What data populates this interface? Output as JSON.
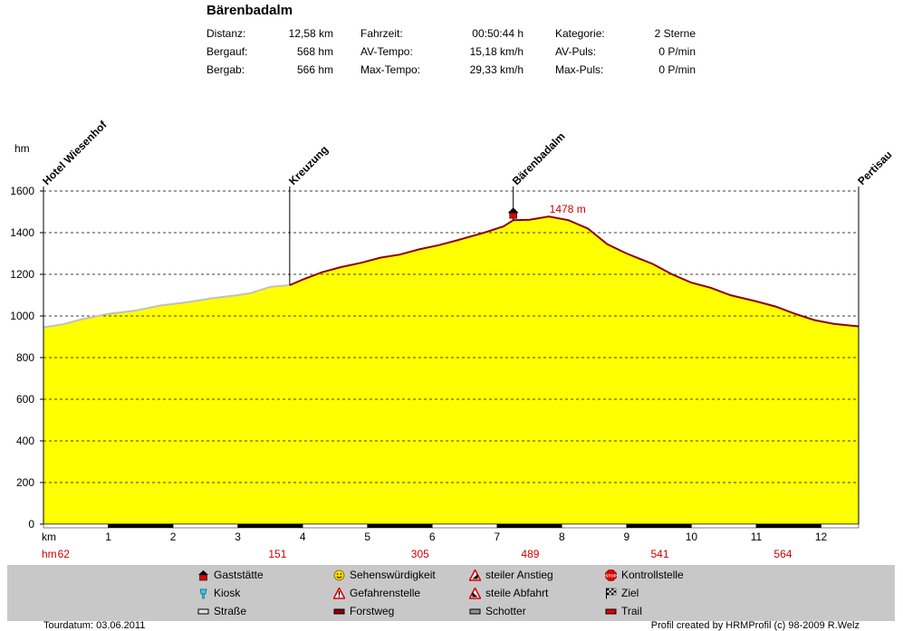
{
  "title": "Bärenbadalm",
  "stats": [
    [
      {
        "label": "Distanz:",
        "value": "12,58 km"
      },
      {
        "label": "Fahrzeit:",
        "value": "00:50:44 h"
      },
      {
        "label": "Kategorie:",
        "value": "2 Sterne"
      }
    ],
    [
      {
        "label": "Bergauf:",
        "value": "568 hm"
      },
      {
        "label": "AV-Tempo:",
        "value": "15,18 km/h"
      },
      {
        "label": "AV-Puls:",
        "value": "0 P/min"
      }
    ],
    [
      {
        "label": "Bergab:",
        "value": "566 hm"
      },
      {
        "label": "Max-Tempo:",
        "value": "29,33 km/h"
      },
      {
        "label": "Max-Puls:",
        "value": "0 P/min"
      }
    ]
  ],
  "colors": {
    "fill": "#ffff00",
    "line_road": "#c0c0c0",
    "line_forest": "#8b0000",
    "hm_text": "#cc0000",
    "legend_bg": "#c8c8c8"
  },
  "chart_data": {
    "type": "area",
    "ylabel": "hm",
    "xlabel": "km",
    "ylim": [
      0,
      1600
    ],
    "xlim": [
      0,
      12.58
    ],
    "yticks": [
      0,
      200,
      400,
      600,
      800,
      1000,
      1200,
      1400,
      1600
    ],
    "xticks": [
      1,
      2,
      3,
      4,
      5,
      6,
      7,
      8,
      9,
      10,
      11,
      12
    ],
    "grid": true,
    "x": [
      0,
      0.3,
      0.6,
      1.0,
      1.4,
      1.8,
      2.2,
      2.6,
      3.0,
      3.2,
      3.5,
      3.8,
      4.0,
      4.3,
      4.6,
      4.9,
      5.2,
      5.5,
      5.8,
      6.1,
      6.4,
      6.8,
      7.1,
      7.25,
      7.5,
      7.8,
      8.1,
      8.4,
      8.7,
      8.9,
      9.0,
      9.2,
      9.4,
      9.7,
      10.0,
      10.3,
      10.6,
      11.0,
      11.3,
      11.6,
      11.9,
      12.2,
      12.58
    ],
    "y": [
      945,
      960,
      985,
      1010,
      1025,
      1050,
      1065,
      1085,
      1100,
      1110,
      1140,
      1148,
      1175,
      1210,
      1235,
      1255,
      1280,
      1295,
      1320,
      1340,
      1365,
      1400,
      1430,
      1460,
      1462,
      1478,
      1460,
      1420,
      1345,
      1315,
      1300,
      1275,
      1250,
      1200,
      1160,
      1135,
      1100,
      1070,
      1045,
      1010,
      980,
      962,
      950
    ],
    "surface_change_km": 3.8,
    "hm_label": "hm",
    "hm_markers": [
      {
        "km": 0.2,
        "value": "62"
      },
      {
        "km": 3.5,
        "value": "151"
      },
      {
        "km": 5.7,
        "value": "305"
      },
      {
        "km": 7.4,
        "value": "489"
      },
      {
        "km": 9.4,
        "value": "541"
      },
      {
        "km": 11.3,
        "value": "564"
      }
    ],
    "waypoints": [
      {
        "km": 0,
        "name": "Hotel Wiesenhof"
      },
      {
        "km": 3.8,
        "name": "Kreuzung"
      },
      {
        "km": 7.25,
        "name": "Bärenbadalm"
      },
      {
        "km": 12.58,
        "name": "Pertisau"
      }
    ],
    "peak": {
      "km": 7.25,
      "label": "1478 m"
    }
  },
  "legend": [
    {
      "label": "Gaststätte",
      "icon": "gaststaette-icon"
    },
    {
      "label": "Sehenswürdigkeit",
      "icon": "sehenswuerdigkeit-icon"
    },
    {
      "label": "steiler Anstieg",
      "icon": "steiler-anstieg-icon"
    },
    {
      "label": "Kontrollstelle",
      "icon": "kontrollstelle-icon"
    },
    {
      "label": "Kiosk",
      "icon": "kiosk-icon"
    },
    {
      "label": "Gefahrenstelle",
      "icon": "gefahrenstelle-icon"
    },
    {
      "label": "steile Abfahrt",
      "icon": "steile-abfahrt-icon"
    },
    {
      "label": "Ziel",
      "icon": "ziel-icon"
    },
    {
      "label": "Straße",
      "icon": "strasse-icon"
    },
    {
      "label": "Forstweg",
      "icon": "forstweg-icon"
    },
    {
      "label": "Schotter",
      "icon": "schotter-icon"
    },
    {
      "label": "Trail",
      "icon": "trail-icon"
    }
  ],
  "footer": {
    "left": "Tourdatum: 03.06.2011",
    "right": "Profil created by HRMProfil (c) 98-2009 R.Welz"
  }
}
